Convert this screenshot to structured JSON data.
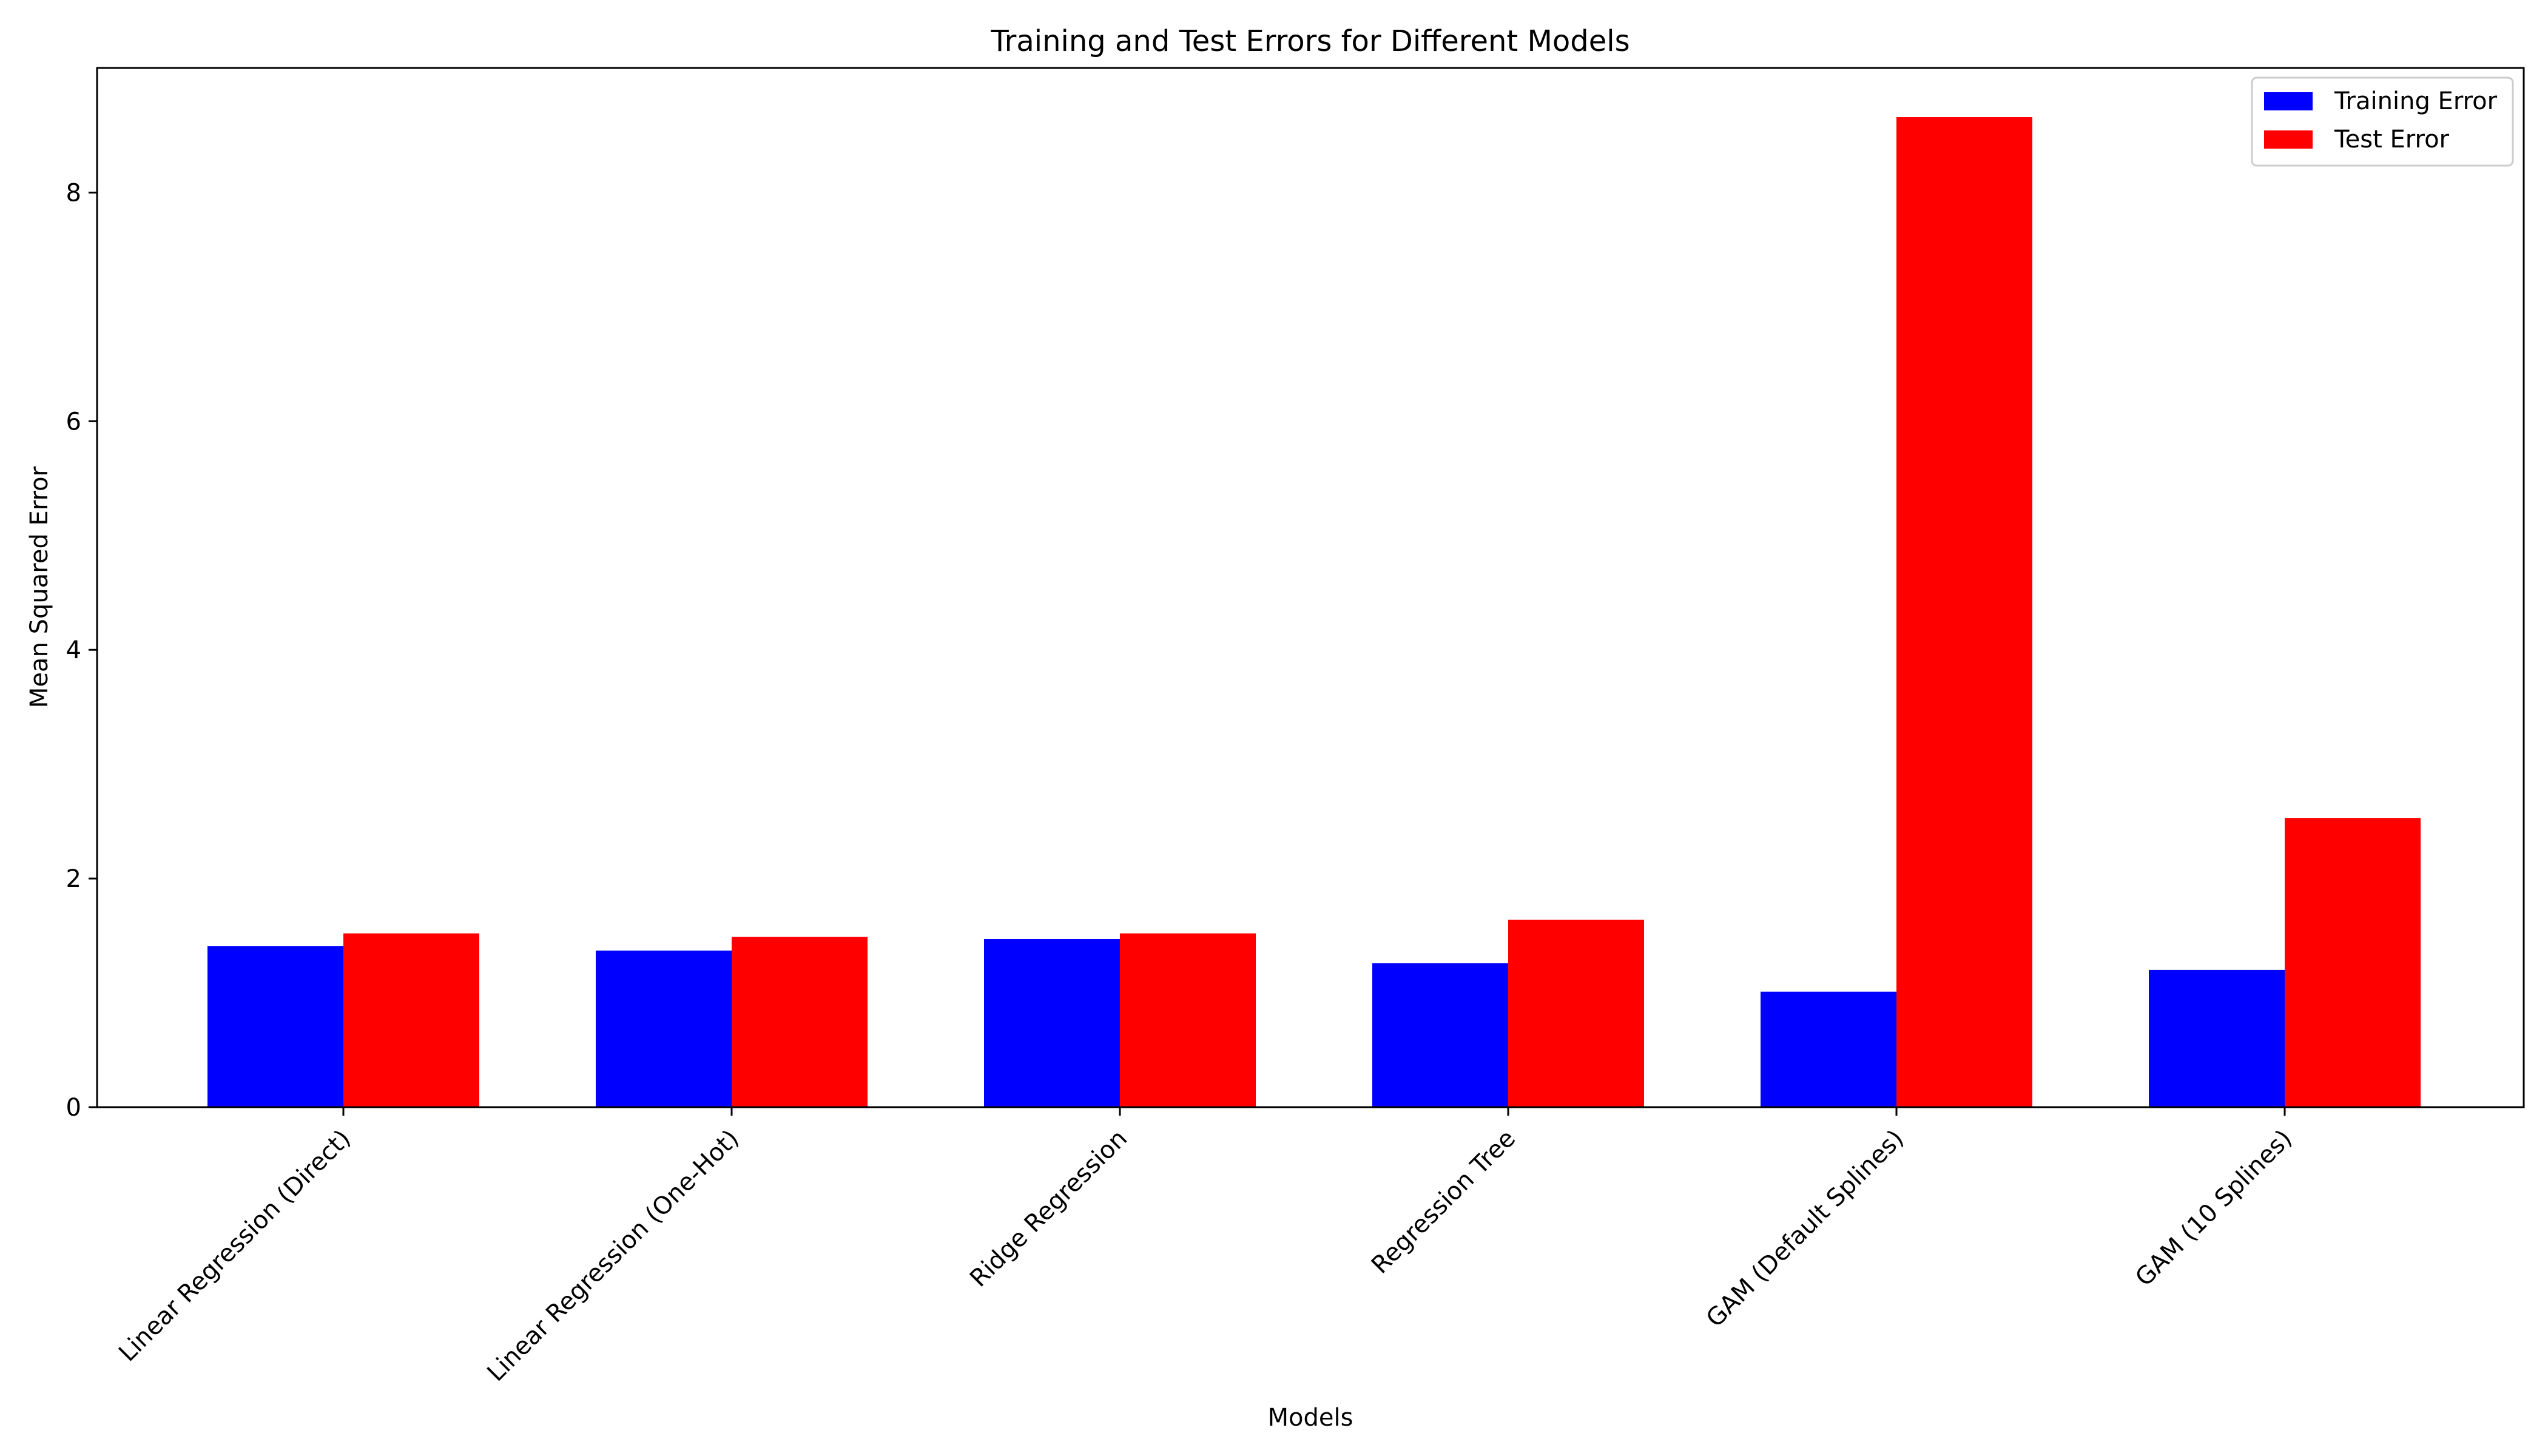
{
  "chart_data": {
    "type": "bar",
    "title": "Training and Test Errors for Different Models",
    "xlabel": "Models",
    "ylabel": "Mean Squared Error",
    "categories": [
      "Linear Regression (Direct)",
      "Linear Regression (One-Hot)",
      "Ridge Regression",
      "Regression Tree",
      "GAM (Default Splines)",
      "GAM (10 Splines)"
    ],
    "series": [
      {
        "name": "Training Error",
        "color": "#0000ff",
        "values": [
          1.41,
          1.37,
          1.47,
          1.26,
          1.01,
          1.2
        ]
      },
      {
        "name": "Test Error",
        "color": "#ff0000",
        "values": [
          1.52,
          1.49,
          1.52,
          1.64,
          8.66,
          2.53
        ]
      }
    ],
    "yticks": [
      0,
      2,
      4,
      6,
      8
    ],
    "ylim": [
      0,
      9.09
    ],
    "grid": false,
    "legend": "top-right"
  }
}
